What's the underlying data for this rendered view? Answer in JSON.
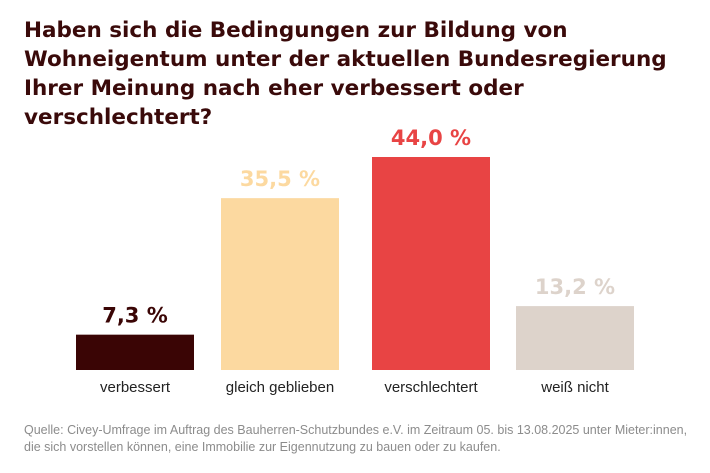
{
  "title": "Haben sich die Bedingungen zur Bildung von Wohneigentum unter der aktuellen Bundesregierung Ihrer Meinung nach eher verbessert oder verschlechtert?",
  "chart_data": {
    "type": "bar",
    "title": "Haben sich die Bedingungen zur Bildung von Wohneigentum unter der aktuellen Bundesregierung Ihrer Meinung nach eher verbessert oder verschlechtert?",
    "categories": [
      "verbessert",
      "gleich geblieben",
      "verschlechtert",
      "weiß nicht"
    ],
    "values": [
      7.3,
      35.5,
      44.0,
      13.2
    ],
    "value_labels": [
      "7,3 %",
      "35,5 %",
      "44,0 %",
      "13,2 %"
    ],
    "colors": [
      "#3a0505",
      "#fcd9a0",
      "#e84444",
      "#ddd3cb"
    ],
    "xlabel": "",
    "ylabel": "",
    "ylim": [
      0,
      44.0
    ],
    "grid": false
  },
  "source": "Quelle: Civey-Umfrage im Auftrag des Bauherren-Schutzbundes e.V. im Zeitraum 05. bis 13.08.2025 unter Mieter:innen, die sich vorstellen können, eine Immobilie zur Eigennutzung zu bauen oder zu kaufen."
}
